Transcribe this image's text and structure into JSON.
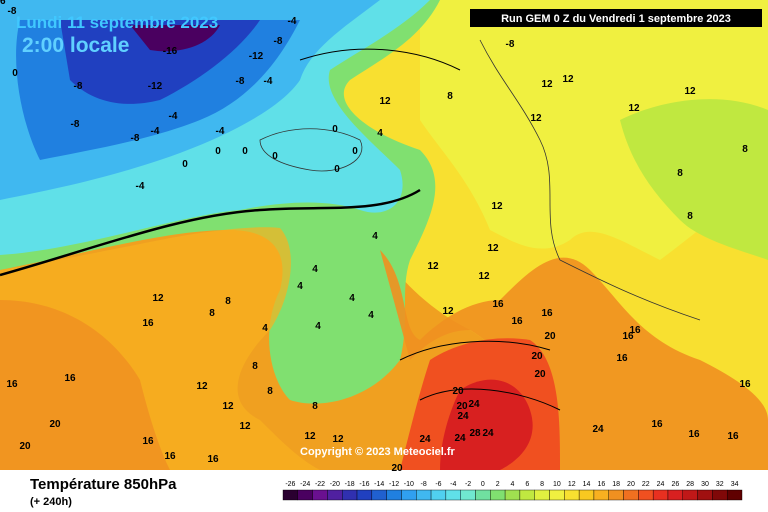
{
  "header": {
    "date": "Lundi 11 septembre 2023",
    "time": "2:00 locale",
    "run": "Run GEM 0 Z du Vendredi 1 septembre 2023"
  },
  "copyright": "Copyright © 2023 Meteociel.fr",
  "footer": {
    "title": "Température 850hPa",
    "lead": "(+ 240h)"
  },
  "colorbar": {
    "ticks": [
      -26,
      -24,
      -22,
      -20,
      -18,
      -16,
      -14,
      -12,
      -10,
      -8,
      -6,
      -4,
      -2,
      0,
      2,
      4,
      6,
      8,
      10,
      12,
      14,
      16,
      18,
      20,
      22,
      24,
      26,
      28,
      30,
      32,
      34
    ],
    "colors": [
      "#2a0030",
      "#4a0060",
      "#6a1090",
      "#5020a0",
      "#3030b0",
      "#2040c0",
      "#2060d0",
      "#2080e0",
      "#30a0f0",
      "#40b8f0",
      "#50d0f0",
      "#60e0e8",
      "#70e8d0",
      "#70e0a0",
      "#80e070",
      "#a0e050",
      "#c0e840",
      "#e0f040",
      "#f0f040",
      "#f8e030",
      "#f8c820",
      "#f8b020",
      "#f09020",
      "#f07020",
      "#f05020",
      "#e83020",
      "#d82020",
      "#c01818",
      "#a01010",
      "#800808",
      "#600000"
    ]
  },
  "map_labels": [
    "-8",
    "-4",
    "-16",
    "-12",
    "-8",
    "-8",
    "-12",
    "-8",
    "-4",
    "-8",
    "0",
    "-8",
    "-4",
    "-4",
    "-4",
    "-8",
    "-4",
    "0",
    "4",
    "0",
    "0",
    "0",
    "0",
    "0",
    "0",
    "12",
    "8",
    "12",
    "12",
    "12",
    "12",
    "12",
    "12",
    "8",
    "8",
    "8",
    "12",
    "12",
    "12",
    "4",
    "4",
    "4",
    "4",
    "4",
    "4",
    "4",
    "8",
    "8",
    "12",
    "16",
    "16",
    "16",
    "20",
    "20",
    "16",
    "12",
    "8",
    "12",
    "8",
    "8",
    "12",
    "12",
    "12",
    "12",
    "16",
    "16",
    "16",
    "20",
    "20",
    "20",
    "20",
    "20",
    "24",
    "24",
    "24",
    "28",
    "24",
    "24",
    "20",
    "24",
    "16",
    "16",
    "16",
    "16",
    "16",
    "16",
    "16",
    "16",
    "16",
    "16"
  ]
}
